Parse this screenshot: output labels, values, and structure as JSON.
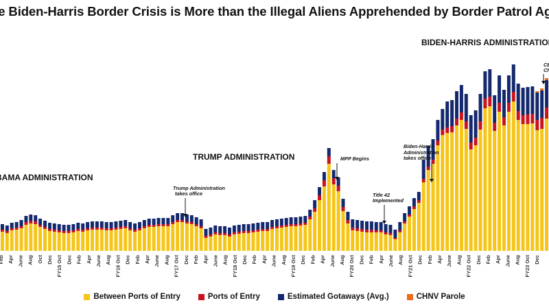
{
  "title": "he Biden-Harris Border Crisis is More than the Illegal Aliens Apprehended by Border Patrol Agen",
  "colors": {
    "between": "#F5C518",
    "ports": "#C8141E",
    "gotaways": "#14286E",
    "chnv": "#EE6A1C"
  },
  "annotations": [
    {
      "text": "BAMA ADMINISTRATION",
      "kind": "admin"
    },
    {
      "text": "TRUMP ADMINISTRATION",
      "kind": "admin"
    },
    {
      "text": "BIDEN-HARRIS ADMINISTRATION",
      "kind": "admin"
    },
    {
      "text": "Trump Administration",
      "kind": "event"
    },
    {
      "text": "takes office",
      "kind": "event"
    },
    {
      "text": "MPP Begins",
      "kind": "event"
    },
    {
      "text": "Title 42",
      "kind": "event"
    },
    {
      "text": "Implemented",
      "kind": "event"
    },
    {
      "text": "Biden-Harris",
      "kind": "event"
    },
    {
      "text": "Administration",
      "kind": "event"
    },
    {
      "text": "takes office",
      "kind": "event"
    },
    {
      "text": "CB",
      "kind": "event"
    },
    {
      "text": "Ch",
      "kind": "event"
    }
  ],
  "chart_data": {
    "type": "bar",
    "stacked": true,
    "title": "he Biden-Harris Border Crisis is More than the Illegal Aliens Apprehended by Border Patrol Agen",
    "xlabel": "",
    "ylabel": "",
    "grid": false,
    "legend_position": "bottom",
    "x_tick_labels": [
      "Feb",
      "Apr",
      "June",
      "Aug",
      "Oct",
      "Dec",
      "FY15 Oct",
      "Dec",
      "Feb",
      "Apr",
      "June",
      "Aug",
      "FY16 Oct",
      "Dec",
      "Feb",
      "Apr",
      "June",
      "Aug",
      "FY17 Oct",
      "Dec",
      "Feb",
      "Apr",
      "June",
      "Aug",
      "FY18 Oct",
      "Dec",
      "Feb",
      "Apr",
      "June",
      "Aug",
      "FY19 Oct",
      "Dec",
      "Feb",
      "Apr",
      "June",
      "Aug",
      "FY20 Oct",
      "Dec",
      "Feb",
      "Apr",
      "June",
      "Aug",
      "FY21 Oct",
      "Dec",
      "Feb",
      "Apr",
      "June",
      "Aug",
      "FY22 Oct",
      "Dec",
      "Feb",
      "Apr",
      "June",
      "Aug",
      "FY23 Oct",
      "Dec"
    ],
    "series": [
      {
        "name": "Between Ports of Entry",
        "color": "#F5C518",
        "values": [
          28,
          26,
          30,
          31,
          33,
          38,
          40,
          39,
          35,
          32,
          29,
          28,
          27,
          26,
          26,
          27,
          29,
          28,
          30,
          31,
          31,
          31,
          30,
          30,
          31,
          32,
          33,
          30,
          28,
          30,
          33,
          35,
          35,
          36,
          36,
          36,
          39,
          42,
          42,
          40,
          39,
          36,
          33,
          19,
          21,
          24,
          23,
          23,
          21,
          24,
          25,
          26,
          26,
          27,
          28,
          29,
          29,
          32,
          33,
          34,
          35,
          36,
          36,
          37,
          38,
          46,
          57,
          74,
          94,
          127,
          97,
          87,
          58,
          40,
          30,
          29,
          28,
          27,
          27,
          27,
          27,
          24,
          23,
          17,
          27,
          40,
          50,
          61,
          70,
          100,
          118,
          127,
          154,
          169,
          172,
          173,
          183,
          191,
          178,
          148,
          154,
          177,
          208,
          211,
          175,
          203,
          183,
          203,
          218,
          191,
          185,
          185,
          186,
          176,
          178,
          193
        ]
      },
      {
        "name": "Ports of Entry",
        "color": "#C8141E",
        "values": [
          3,
          3,
          3,
          3,
          3,
          4,
          4,
          4,
          3,
          3,
          3,
          3,
          3,
          3,
          3,
          3,
          3,
          3,
          3,
          3,
          3,
          3,
          3,
          3,
          3,
          3,
          3,
          3,
          3,
          3,
          3,
          3,
          3,
          3,
          3,
          3,
          3,
          3,
          3,
          3,
          3,
          3,
          3,
          3,
          3,
          3,
          3,
          3,
          3,
          3,
          3,
          3,
          3,
          3,
          3,
          3,
          3,
          3,
          3,
          3,
          3,
          3,
          3,
          3,
          3,
          4,
          5,
          7,
          9,
          11,
          9,
          8,
          6,
          5,
          4,
          4,
          4,
          4,
          4,
          3,
          3,
          3,
          3,
          2,
          3,
          3,
          3,
          4,
          4,
          5,
          5,
          6,
          7,
          8,
          8,
          9,
          10,
          11,
          11,
          10,
          11,
          12,
          14,
          14,
          12,
          13,
          12,
          13,
          14,
          13,
          13,
          14,
          14,
          15,
          16,
          16
        ]
      },
      {
        "name": "Estimated Gotaways (Avg.)",
        "color": "#14286E",
        "values": [
          8,
          8,
          8,
          8,
          9,
          9,
          9,
          9,
          9,
          9,
          9,
          9,
          9,
          9,
          9,
          9,
          9,
          9,
          9,
          9,
          9,
          9,
          9,
          9,
          9,
          9,
          9,
          9,
          9,
          9,
          9,
          9,
          9,
          9,
          9,
          9,
          10,
          10,
          10,
          10,
          10,
          10,
          10,
          10,
          10,
          10,
          10,
          10,
          10,
          10,
          10,
          10,
          10,
          10,
          10,
          10,
          10,
          10,
          10,
          10,
          10,
          10,
          10,
          10,
          10,
          10,
          12,
          12,
          12,
          12,
          12,
          12,
          12,
          12,
          12,
          12,
          12,
          12,
          12,
          12,
          12,
          12,
          12,
          12,
          12,
          12,
          12,
          12,
          12,
          28,
          30,
          30,
          30,
          30,
          38,
          38,
          40,
          40,
          40,
          40,
          40,
          40,
          40,
          40,
          40,
          40,
          40,
          40,
          40,
          40,
          40,
          40,
          40,
          40,
          40,
          40
        ]
      },
      {
        "name": "CHNV Parole",
        "color": "#EE6A1C",
        "values": [
          0,
          0,
          0,
          0,
          0,
          0,
          0,
          0,
          0,
          0,
          0,
          0,
          0,
          0,
          0,
          0,
          0,
          0,
          0,
          0,
          0,
          0,
          0,
          0,
          0,
          0,
          0,
          0,
          0,
          0,
          0,
          0,
          0,
          0,
          0,
          0,
          0,
          0,
          0,
          0,
          0,
          0,
          0,
          0,
          0,
          0,
          0,
          0,
          0,
          0,
          0,
          0,
          0,
          0,
          0,
          0,
          0,
          0,
          0,
          0,
          0,
          0,
          0,
          0,
          0,
          0,
          0,
          0,
          0,
          0,
          0,
          0,
          0,
          0,
          0,
          0,
          0,
          0,
          0,
          0,
          0,
          0,
          0,
          0,
          0,
          0,
          0,
          0,
          0,
          0,
          0,
          0,
          0,
          0,
          0,
          0,
          0,
          0,
          0,
          0,
          0,
          0,
          0,
          0,
          0,
          0,
          0,
          0,
          0,
          0,
          0,
          0,
          0,
          2,
          3,
          3
        ]
      }
    ],
    "ylim": [
      0,
      300
    ]
  }
}
